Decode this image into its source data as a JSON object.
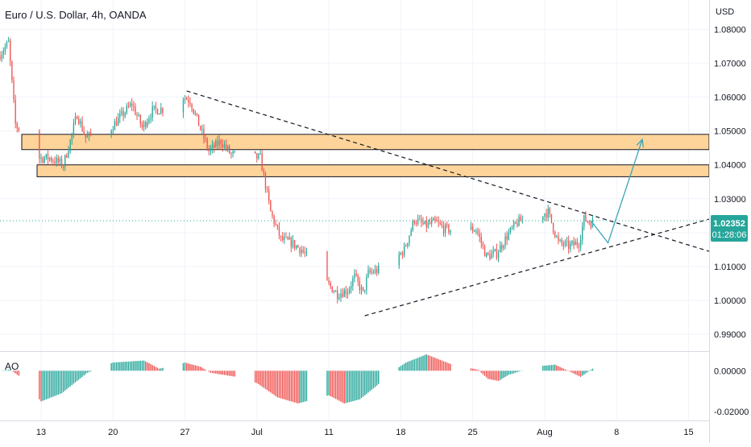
{
  "header": {
    "title": "Euro / U.S. Dollar, 4h, OANDA"
  },
  "price_axis": {
    "currency": "USD",
    "ticks": [
      "1.08000",
      "1.07000",
      "1.06000",
      "1.05000",
      "1.04000",
      "1.03000",
      "1.02000",
      "1.01000",
      "1.00000",
      "0.99000"
    ]
  },
  "last_price": {
    "value": "1.02352",
    "countdown": "01:28:06"
  },
  "indicator": {
    "name": "AO",
    "ticks": [
      "0.00000",
      "-0.02000"
    ]
  },
  "time_axis": {
    "labels": [
      "13",
      "20",
      "27",
      "Jul",
      "11",
      "18",
      "25",
      "Aug",
      "8",
      "15"
    ]
  },
  "colors": {
    "up": "#26a69a",
    "down": "#ef5350",
    "zone_fill": "#ffd49a",
    "arrow": "#3aa6b9",
    "price_line": "#26a69a"
  },
  "chart_data": {
    "type": "candlestick",
    "symbol": "EUR/USD",
    "timeframe": "4h",
    "price_range": [
      0.986,
      1.0815
    ],
    "x_range_days": [
      "2022-06-09",
      "2022-08-17"
    ],
    "anchors": [
      [
        "2022-06-09T00:00",
        1.072
      ],
      [
        "2022-06-10T00:00",
        1.076
      ],
      [
        "2022-06-10T16:00",
        1.052
      ],
      [
        "2022-06-13T00:00",
        1.042
      ],
      [
        "2022-06-14T00:00",
        1.042
      ],
      [
        "2022-06-15T08:00",
        1.04
      ],
      [
        "2022-06-16T00:00",
        1.047
      ],
      [
        "2022-06-16T16:00",
        1.055
      ],
      [
        "2022-06-17T12:00",
        1.048
      ],
      [
        "2022-06-20T00:00",
        1.051
      ],
      [
        "2022-06-22T00:00",
        1.058
      ],
      [
        "2022-06-23T00:00",
        1.051
      ],
      [
        "2022-06-24T00:00",
        1.056
      ],
      [
        "2022-06-26T00:00",
        1.057
      ],
      [
        "2022-06-27T00:00",
        1.06
      ],
      [
        "2022-06-27T16:00",
        1.059
      ],
      [
        "2022-06-28T12:00",
        1.052
      ],
      [
        "2022-06-29T12:00",
        1.044
      ],
      [
        "2022-06-30T16:00",
        1.047
      ],
      [
        "2022-07-01T16:00",
        1.043
      ],
      [
        "2022-07-04T12:00",
        1.042
      ],
      [
        "2022-07-05T12:00",
        1.026
      ],
      [
        "2022-07-06T12:00",
        1.018
      ],
      [
        "2022-07-07T12:00",
        1.017
      ],
      [
        "2022-07-08T12:00",
        1.015
      ],
      [
        "2022-07-11T00:00",
        1.005
      ],
      [
        "2022-07-12T00:00",
        1.002
      ],
      [
        "2022-07-13T00:00",
        1.003
      ],
      [
        "2022-07-13T16:00",
        1.007
      ],
      [
        "2022-07-14T12:00",
        1.002
      ],
      [
        "2022-07-15T00:00",
        1.008
      ],
      [
        "2022-07-17T00:00",
        1.01
      ],
      [
        "2022-07-18T12:00",
        1.015
      ],
      [
        "2022-07-19T12:00",
        1.024
      ],
      [
        "2022-07-20T12:00",
        1.022
      ],
      [
        "2022-07-21T12:00",
        1.023
      ],
      [
        "2022-07-22T12:00",
        1.021
      ],
      [
        "2022-07-24T00:00",
        1.021
      ],
      [
        "2022-07-25T12:00",
        1.021
      ],
      [
        "2022-07-26T12:00",
        1.013
      ],
      [
        "2022-07-27T12:00",
        1.014
      ],
      [
        "2022-07-28T12:00",
        1.019
      ],
      [
        "2022-07-29T12:00",
        1.023
      ],
      [
        "2022-07-31T00:00",
        1.025
      ],
      [
        "2022-08-01T12:00",
        1.026
      ],
      [
        "2022-08-02T12:00",
        1.017
      ],
      [
        "2022-08-03T12:00",
        1.016
      ],
      [
        "2022-08-04T12:00",
        1.017
      ],
      [
        "2022-08-05T00:00",
        1.024
      ],
      [
        "2022-08-05T16:00",
        1.023
      ]
    ],
    "supply_zone_upper": {
      "low": 1.0445,
      "high": 1.049
    },
    "supply_zone_lower": {
      "low": 1.0365,
      "high": 1.04
    },
    "descending_trendline": [
      [
        "2022-06-27T04:00",
        1.0618
      ],
      [
        "2022-08-17T00:00",
        1.0145
      ]
    ],
    "ascending_trendline": [
      [
        "2022-07-14T12:00",
        0.9955
      ],
      [
        "2022-08-17T00:00",
        1.024
      ]
    ],
    "projection_path": [
      [
        "2022-08-05T12:00",
        1.0235
      ],
      [
        "2022-08-07T04:00",
        1.017
      ],
      [
        "2022-08-10T12:00",
        1.0475
      ]
    ],
    "last_price": 1.02352,
    "ao_range": [
      -0.0235,
      0.008
    ],
    "ao_anchors": [
      [
        "2022-06-09T00:00",
        0.0
      ],
      [
        "2022-06-10T00:00",
        0.0005
      ],
      [
        "2022-06-11T00:00",
        -0.003
      ],
      [
        "2022-06-13T00:00",
        -0.015
      ],
      [
        "2022-06-15T00:00",
        -0.011
      ],
      [
        "2022-06-16T12:00",
        -0.005
      ],
      [
        "2022-06-17T12:00",
        -0.001
      ],
      [
        "2022-06-20T00:00",
        0.004
      ],
      [
        "2022-06-23T00:00",
        0.005
      ],
      [
        "2022-06-24T12:00",
        0.001
      ],
      [
        "2022-06-27T00:00",
        0.004
      ],
      [
        "2022-06-28T12:00",
        0.002
      ],
      [
        "2022-06-29T12:00",
        -0.001
      ],
      [
        "2022-07-02T00:00",
        -0.003
      ],
      [
        "2022-07-04T00:00",
        -0.006
      ],
      [
        "2022-07-06T00:00",
        -0.013
      ],
      [
        "2022-07-08T00:00",
        -0.016
      ],
      [
        "2022-07-11T00:00",
        -0.012
      ],
      [
        "2022-07-12T12:00",
        -0.016
      ],
      [
        "2022-07-14T00:00",
        -0.014
      ],
      [
        "2022-07-15T12:00",
        -0.008
      ],
      [
        "2022-07-17T00:00",
        -0.001
      ],
      [
        "2022-07-18T12:00",
        0.004
      ],
      [
        "2022-07-20T12:00",
        0.008
      ],
      [
        "2022-07-21T12:00",
        0.006
      ],
      [
        "2022-07-23T00:00",
        0.003
      ],
      [
        "2022-07-25T12:00",
        0.0005
      ],
      [
        "2022-07-26T12:00",
        -0.004
      ],
      [
        "2022-07-27T12:00",
        -0.005
      ],
      [
        "2022-07-28T12:00",
        -0.002
      ],
      [
        "2022-07-31T00:00",
        0.002
      ],
      [
        "2022-08-02T00:00",
        0.003
      ],
      [
        "2022-08-03T12:00",
        -0.0005
      ],
      [
        "2022-08-04T12:00",
        -0.003
      ],
      [
        "2022-08-05T16:00",
        0.001
      ]
    ]
  }
}
